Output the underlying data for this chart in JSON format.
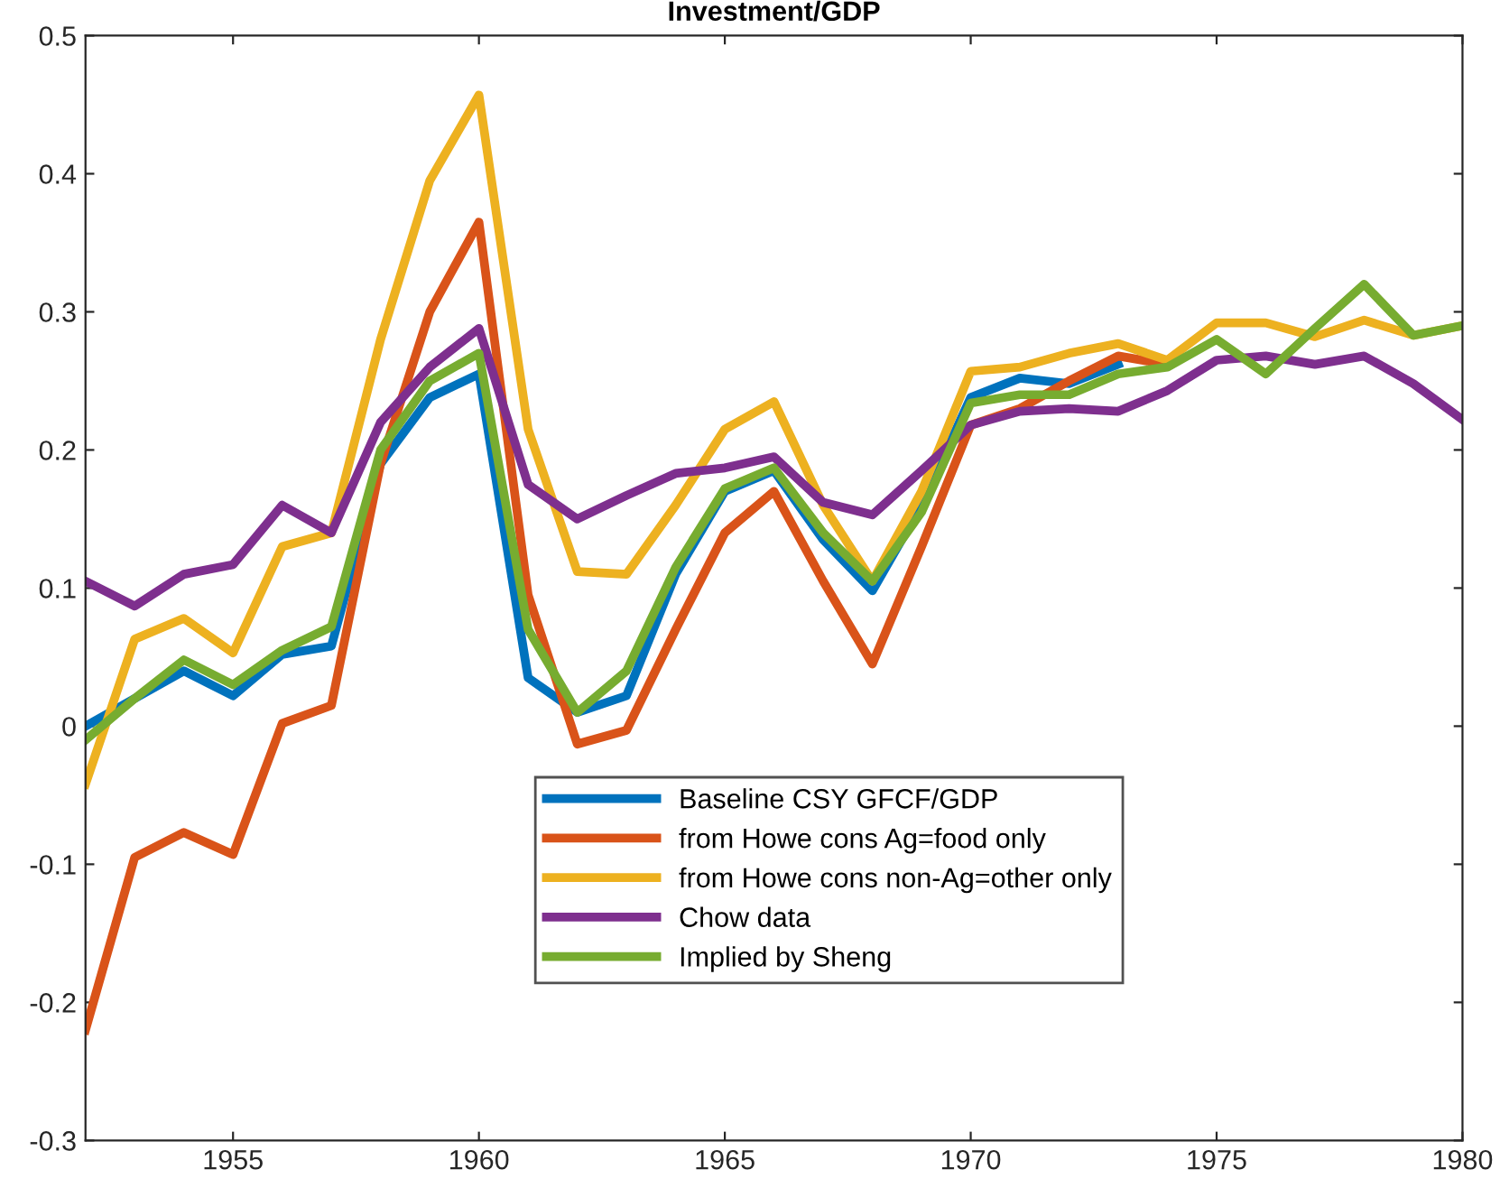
{
  "chart_data": {
    "type": "line",
    "title": "Investment/GDP",
    "x": [
      1952,
      1953,
      1954,
      1955,
      1956,
      1957,
      1958,
      1959,
      1960,
      1961,
      1962,
      1963,
      1964,
      1965,
      1966,
      1967,
      1968,
      1969,
      1970,
      1971,
      1972,
      1973,
      1974,
      1975,
      1976,
      1977,
      1978,
      1979,
      1980
    ],
    "series": [
      {
        "name": "Baseline CSY GFCF/GDP",
        "color": "#0072bd",
        "values": [
          0.0,
          0.02,
          0.04,
          0.022,
          0.052,
          0.058,
          0.19,
          0.238,
          0.255,
          0.035,
          0.01,
          0.022,
          0.11,
          0.17,
          0.185,
          0.135,
          0.098,
          0.16,
          0.238,
          0.252,
          0.248,
          0.262,
          null,
          null,
          null,
          null,
          null,
          null,
          null
        ]
      },
      {
        "name": "from Howe cons Ag=food only",
        "color": "#d95319",
        "values": [
          -0.22,
          -0.095,
          -0.077,
          -0.093,
          0.002,
          0.015,
          0.19,
          0.3,
          0.365,
          0.095,
          -0.013,
          -0.003,
          0.07,
          0.14,
          0.17,
          0.105,
          0.045,
          0.13,
          0.218,
          0.23,
          0.25,
          0.268,
          0.262,
          null,
          null,
          null,
          null,
          null,
          null
        ]
      },
      {
        "name": "from Howe cons non-Ag=other only",
        "color": "#edb120",
        "values": [
          -0.042,
          0.063,
          0.078,
          0.053,
          0.13,
          0.14,
          0.28,
          0.395,
          0.457,
          0.215,
          0.112,
          0.11,
          0.16,
          0.215,
          0.235,
          0.16,
          0.105,
          0.17,
          0.257,
          0.26,
          0.27,
          0.277,
          0.265,
          0.292,
          0.292,
          0.282,
          0.294,
          0.283,
          0.29
        ]
      },
      {
        "name": "Chow data",
        "color": "#7e2f8e",
        "values": [
          0.105,
          0.087,
          0.11,
          0.117,
          0.16,
          0.14,
          0.22,
          0.26,
          0.288,
          0.175,
          0.15,
          0.167,
          0.183,
          0.187,
          0.195,
          0.162,
          0.153,
          0.185,
          0.218,
          0.228,
          0.23,
          0.228,
          0.243,
          0.265,
          0.268,
          0.262,
          0.268,
          0.248,
          0.222
        ]
      },
      {
        "name": "Implied by Sheng",
        "color": "#77ac30",
        "values": [
          -0.01,
          0.02,
          0.048,
          0.03,
          0.055,
          0.072,
          0.2,
          0.25,
          0.27,
          0.07,
          0.01,
          0.04,
          0.115,
          0.172,
          0.187,
          0.14,
          0.105,
          0.155,
          0.234,
          0.24,
          0.24,
          0.255,
          0.26,
          0.28,
          0.255,
          0.288,
          0.32,
          0.283,
          0.29
        ]
      }
    ],
    "xlim": [
      1952,
      1980
    ],
    "xticks": [
      1955,
      1960,
      1965,
      1970,
      1975,
      1980
    ],
    "ylim": [
      -0.3,
      0.5
    ],
    "yticks": [
      -0.3,
      -0.2,
      -0.1,
      0,
      0.1,
      0.2,
      0.3,
      0.4,
      0.5
    ],
    "grid": false,
    "legend": "bottom",
    "line_style": "solid"
  }
}
